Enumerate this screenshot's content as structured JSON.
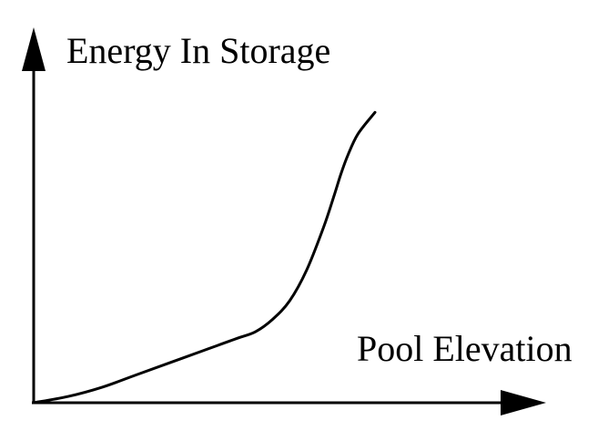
{
  "chart_data": {
    "type": "line",
    "title": "",
    "ylabel": "Energy In Storage",
    "xlabel": "Pool Elevation",
    "grid": false,
    "legend": "none",
    "axis_ticks": false,
    "xlim": [
      0,
      100
    ],
    "ylim": [
      0,
      100
    ],
    "series": [
      {
        "x": [
          0,
          10,
          20,
          30,
          40,
          50,
          55,
          60,
          65,
          70,
          75,
          80,
          85,
          88,
          90,
          92,
          95,
          100
        ],
        "y": [
          0,
          2,
          5,
          9,
          13,
          17,
          19,
          21,
          23,
          27,
          33,
          43,
          57,
          67,
          74,
          80,
          87,
          94
        ]
      }
    ],
    "colors": {
      "line": "#000000",
      "axes": "#000000",
      "background": "#ffffff"
    }
  }
}
